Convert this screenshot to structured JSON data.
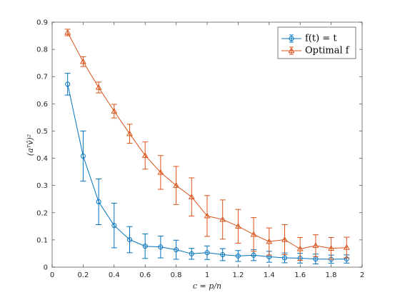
{
  "chart_data": {
    "type": "line",
    "title": "",
    "xlabel": "c = p/n",
    "ylabel": "(aᵀv̂)²",
    "xlim": [
      0,
      2
    ],
    "ylim": [
      0,
      0.9
    ],
    "xticks": [
      0,
      0.2,
      0.4,
      0.6,
      0.8,
      1,
      1.2,
      1.4,
      1.6,
      1.8,
      2
    ],
    "xtick_labels": [
      "0",
      "0.2",
      "0.4",
      "0.6",
      "0.8",
      "1",
      "1.2",
      "1.4",
      "1.6",
      "1.8",
      "2"
    ],
    "yticks": [
      0,
      0.1,
      0.2,
      0.3,
      0.4,
      0.5,
      0.6,
      0.7,
      0.8,
      0.9
    ],
    "ytick_labels": [
      "0",
      "0.1",
      "0.2",
      "0.3",
      "0.4",
      "0.5",
      "0.6",
      "0.7",
      "0.8",
      "0.9"
    ],
    "grid": false,
    "legend_position": "top-right",
    "x": [
      0.1,
      0.2,
      0.3,
      0.4,
      0.5,
      0.6,
      0.7,
      0.8,
      0.9,
      1.0,
      1.1,
      1.2,
      1.3,
      1.4,
      1.5,
      1.6,
      1.7,
      1.8,
      1.9
    ],
    "series": [
      {
        "name": "f(t) = t",
        "color": "#0072BD",
        "marker": "circle",
        "values": [
          0.672,
          0.408,
          0.24,
          0.153,
          0.101,
          0.077,
          0.074,
          0.064,
          0.049,
          0.053,
          0.046,
          0.041,
          0.044,
          0.038,
          0.034,
          0.033,
          0.03,
          0.029,
          0.03
        ],
        "errors": [
          0.04,
          0.092,
          0.084,
          0.082,
          0.048,
          0.045,
          0.04,
          0.035,
          0.02,
          0.025,
          0.022,
          0.02,
          0.02,
          0.02,
          0.018,
          0.018,
          0.018,
          0.015,
          0.015
        ]
      },
      {
        "name": "Optimal f",
        "color": "#D95319",
        "marker": "triangle",
        "values": [
          0.862,
          0.755,
          0.66,
          0.573,
          0.49,
          0.41,
          0.348,
          0.3,
          0.258,
          0.188,
          0.175,
          0.15,
          0.12,
          0.094,
          0.101,
          0.067,
          0.079,
          0.069,
          0.072
        ],
        "errors": [
          0.012,
          0.018,
          0.02,
          0.025,
          0.035,
          0.05,
          0.062,
          0.07,
          0.07,
          0.075,
          0.072,
          0.062,
          0.062,
          0.05,
          0.055,
          0.042,
          0.04,
          0.04,
          0.038
        ]
      }
    ]
  }
}
